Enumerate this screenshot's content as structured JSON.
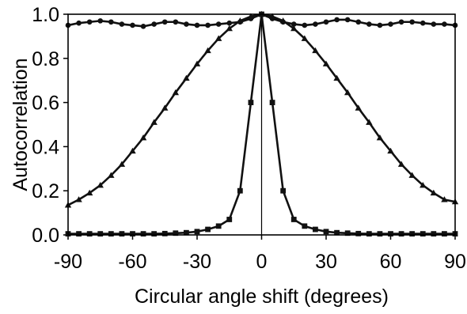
{
  "chart_data": {
    "type": "line",
    "title": "",
    "xlabel": "Circular angle shift (degrees)",
    "ylabel": "Autocorrelation",
    "xlim": [
      -90,
      90
    ],
    "ylim": [
      0,
      1
    ],
    "xticks": [
      -90,
      -60,
      -30,
      0,
      30,
      60,
      90
    ],
    "xtick_labels": [
      "-90",
      "-60",
      "-30",
      "0",
      "30",
      "60",
      "90"
    ],
    "yticks": [
      0,
      0.2,
      0.4,
      0.6,
      0.8,
      1.0
    ],
    "ytick_labels": [
      "0.0",
      "0.2",
      "0.4",
      "0.6",
      "0.8",
      "1.0"
    ],
    "grid": false,
    "legend": "none",
    "reference_line_x": 0,
    "colors": {
      "line": "#111111",
      "axis": "#000000",
      "background": "#ffffff"
    },
    "series": [
      {
        "marker": "circle",
        "x": [
          -90,
          -85,
          -80,
          -75,
          -70,
          -65,
          -60,
          -55,
          -50,
          -45,
          -40,
          -35,
          -30,
          -25,
          -20,
          -15,
          -10,
          -5,
          0,
          5,
          10,
          15,
          20,
          25,
          30,
          35,
          40,
          45,
          50,
          55,
          60,
          65,
          70,
          75,
          80,
          85,
          90
        ],
        "y": [
          0.95,
          0.96,
          0.965,
          0.97,
          0.965,
          0.955,
          0.95,
          0.945,
          0.955,
          0.965,
          0.965,
          0.955,
          0.95,
          0.95,
          0.955,
          0.96,
          0.965,
          0.98,
          1.0,
          0.98,
          0.965,
          0.955,
          0.95,
          0.955,
          0.965,
          0.975,
          0.975,
          0.965,
          0.955,
          0.95,
          0.955,
          0.965,
          0.965,
          0.96,
          0.955,
          0.955,
          0.95
        ]
      },
      {
        "marker": "triangle",
        "x": [
          -90,
          -85,
          -80,
          -75,
          -70,
          -65,
          -60,
          -55,
          -50,
          -45,
          -40,
          -35,
          -30,
          -25,
          -20,
          -15,
          -10,
          -5,
          0,
          5,
          10,
          15,
          20,
          25,
          30,
          35,
          40,
          45,
          50,
          55,
          60,
          65,
          70,
          75,
          80,
          85,
          90
        ],
        "y": [
          0.135,
          0.16,
          0.19,
          0.225,
          0.27,
          0.32,
          0.38,
          0.44,
          0.51,
          0.575,
          0.645,
          0.71,
          0.775,
          0.835,
          0.89,
          0.935,
          0.97,
          0.99,
          1.0,
          0.99,
          0.97,
          0.935,
          0.89,
          0.835,
          0.775,
          0.71,
          0.645,
          0.575,
          0.51,
          0.44,
          0.38,
          0.32,
          0.27,
          0.225,
          0.19,
          0.16,
          0.15
        ]
      },
      {
        "marker": "square",
        "x": [
          -90,
          -85,
          -80,
          -75,
          -70,
          -65,
          -60,
          -55,
          -50,
          -45,
          -40,
          -35,
          -30,
          -25,
          -20,
          -15,
          -10,
          -5,
          0,
          5,
          10,
          15,
          20,
          25,
          30,
          35,
          40,
          45,
          50,
          55,
          60,
          65,
          70,
          75,
          80,
          85,
          90
        ],
        "y": [
          0.005,
          0.005,
          0.005,
          0.005,
          0.005,
          0.005,
          0.005,
          0.005,
          0.005,
          0.006,
          0.008,
          0.01,
          0.015,
          0.025,
          0.04,
          0.07,
          0.2,
          0.6,
          1.0,
          0.6,
          0.2,
          0.07,
          0.04,
          0.025,
          0.015,
          0.01,
          0.008,
          0.006,
          0.005,
          0.005,
          0.005,
          0.005,
          0.005,
          0.005,
          0.005,
          0.005,
          0.005
        ]
      }
    ]
  }
}
